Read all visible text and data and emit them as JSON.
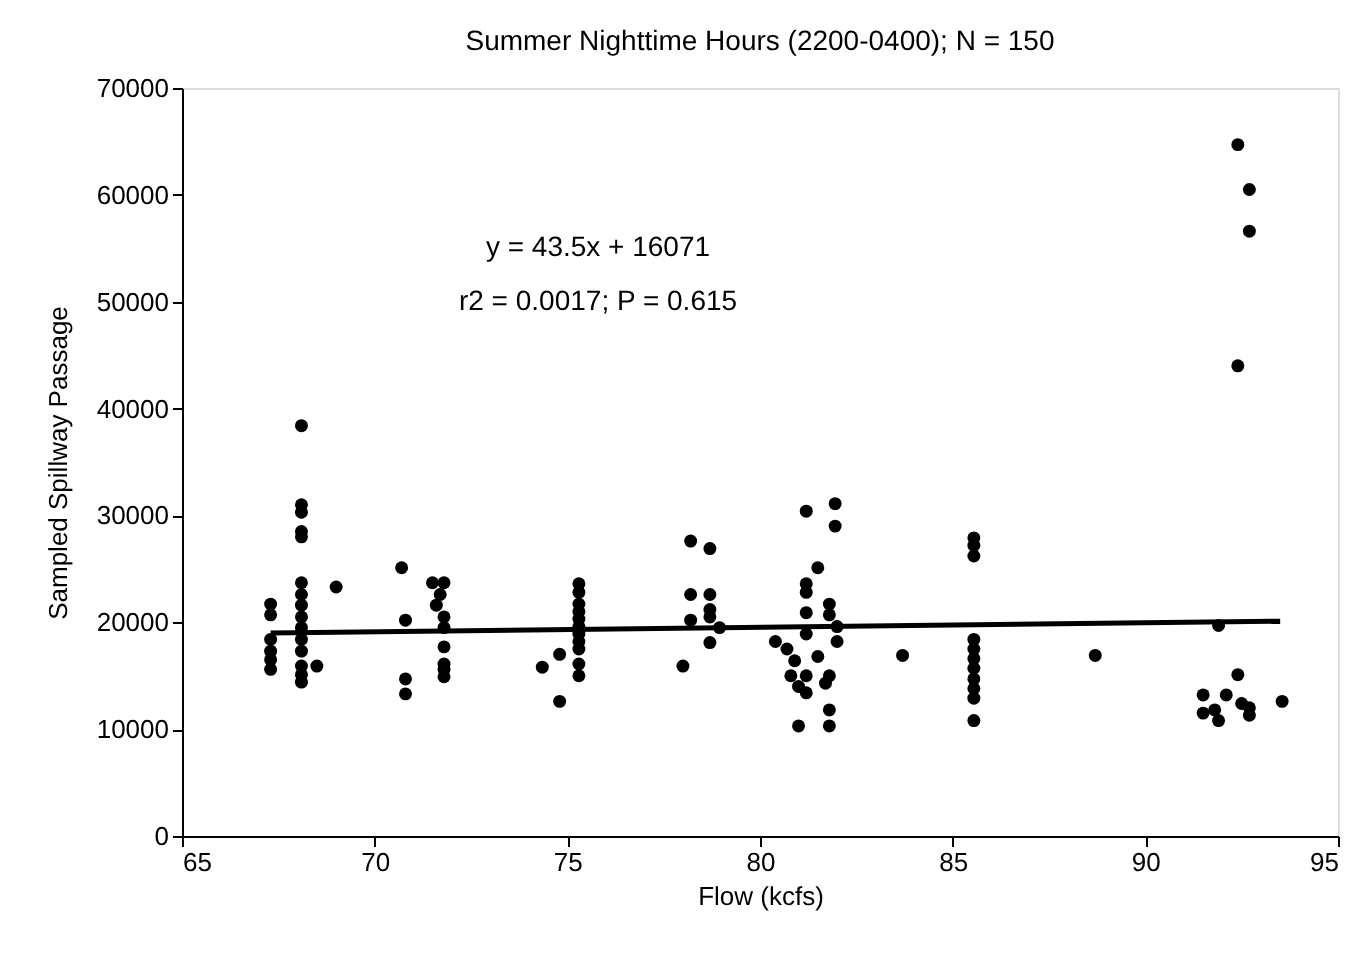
{
  "chart_data": {
    "type": "scatter",
    "title": "Summer Nighttime Hours (2200-0400); N = 150",
    "xlabel": "Flow (kcfs)",
    "ylabel": "Sampled Spillway Passage",
    "xlim": [
      65,
      95
    ],
    "xticks": [
      65,
      70,
      75,
      80,
      85,
      90,
      95
    ],
    "ylim": [
      0,
      70000
    ],
    "yticks": [
      0,
      10000,
      20000,
      30000,
      40000,
      50000,
      60000,
      70000
    ],
    "grid": false,
    "marker": "circle",
    "annotations": [
      "y = 43.5x + 16071",
      "r2 = 0.0017; P = 0.615"
    ],
    "series": [
      {
        "color": "#000000",
        "x": [
          67.3,
          67.3,
          67.3,
          67.3,
          67.3,
          67.3,
          68.1,
          68.1,
          68.1,
          68.1,
          68.1,
          68.1,
          68.1,
          68.1,
          68.1,
          68.1,
          68.1,
          68.1,
          68.1,
          68.1,
          68.1,
          68.5,
          69.0,
          70.7,
          70.8,
          70.8,
          70.8,
          71.5,
          71.7,
          71.6,
          71.8,
          71.8,
          71.8,
          71.8,
          71.8,
          71.8,
          71.8,
          74.35,
          74.8,
          74.8,
          75.3,
          75.3,
          75.3,
          75.3,
          75.3,
          75.3,
          75.3,
          75.3,
          75.3,
          75.3,
          75.3,
          78.2,
          78.2,
          78.2,
          78.0,
          78.7,
          78.7,
          78.7,
          78.7,
          78.7,
          78.95,
          81.2,
          81.95,
          81.95,
          81.5,
          81.2,
          81.2,
          81.8,
          81.2,
          81.8,
          82.0,
          81.2,
          80.4,
          80.7,
          82.0,
          80.9,
          81.5,
          80.8,
          81.2,
          81.8,
          81.0,
          81.2,
          81.7,
          81.0,
          81.8,
          81.8,
          83.7,
          85.55,
          85.55,
          85.55,
          85.55,
          85.55,
          85.55,
          85.55,
          85.55,
          85.55,
          85.55,
          85.55,
          88.7,
          92.4,
          92.7,
          92.7,
          92.4,
          91.9,
          92.4,
          91.5,
          92.1,
          91.5,
          91.8,
          91.9,
          92.5,
          92.7,
          92.7,
          93.55
        ],
        "values": [
          21700,
          20700,
          18400,
          17300,
          16500,
          15600,
          38400,
          31000,
          30300,
          28500,
          28000,
          23700,
          22600,
          21600,
          20500,
          19500,
          18400,
          17300,
          15900,
          15100,
          14400,
          15900,
          23300,
          25100,
          20200,
          14700,
          13300,
          23700,
          22600,
          21600,
          20500,
          19500,
          17700,
          16100,
          15600,
          14900,
          23700,
          15800,
          12600,
          17000,
          23600,
          22800,
          21700,
          21000,
          20300,
          19600,
          18900,
          18200,
          17500,
          16100,
          15000,
          27600,
          22600,
          20200,
          15900,
          26900,
          22600,
          21200,
          20500,
          18100,
          19500,
          30400,
          31100,
          29000,
          25100,
          23600,
          22800,
          21700,
          20900,
          20700,
          19600,
          18900,
          18200,
          17500,
          18200,
          16400,
          16800,
          15000,
          15000,
          15000,
          14000,
          13400,
          14300,
          10300,
          11800,
          10300,
          16900,
          27900,
          27200,
          26200,
          18400,
          17500,
          16600,
          15700,
          14700,
          13800,
          12900,
          10800,
          16900,
          64700,
          60500,
          56600,
          44000,
          19700,
          15100,
          13200,
          13200,
          11500,
          11800,
          10800,
          12400,
          11300,
          12000,
          12600
        ]
      },
      {
        "type": "line",
        "color": "#000000",
        "line_style": "solid",
        "marker": "none",
        "x": [
          67.3,
          93.5
        ],
        "values": [
          19000,
          20100
        ]
      }
    ]
  }
}
